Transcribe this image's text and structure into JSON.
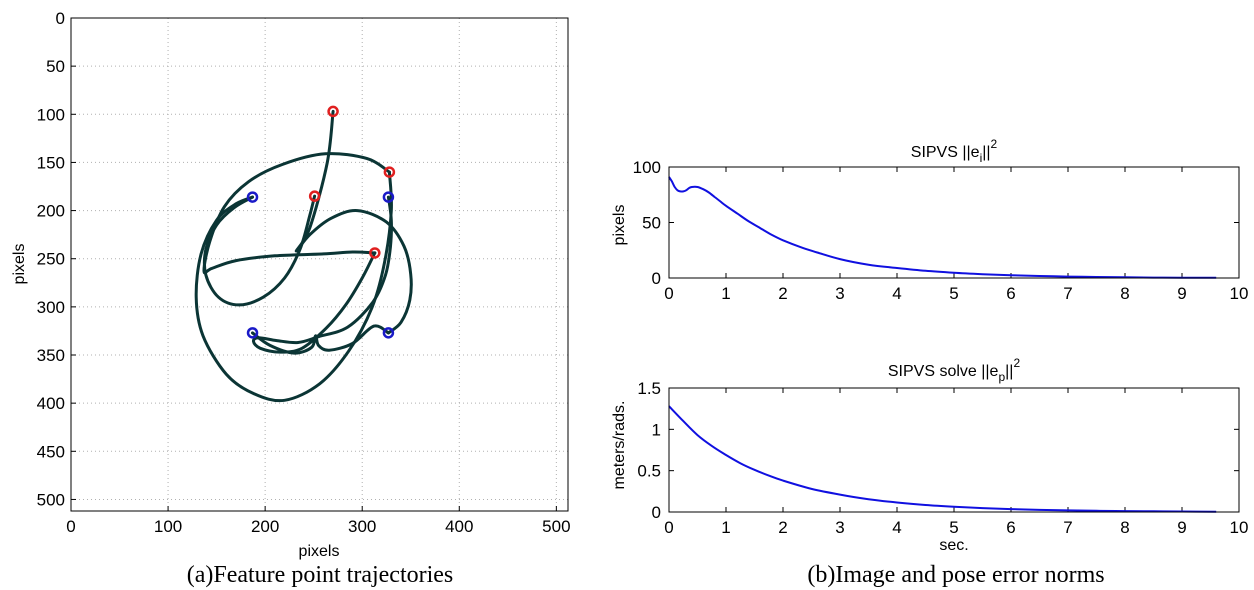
{
  "captions": {
    "a": "(a)Feature point trajectories",
    "b": "(b)Image and pose error norms"
  },
  "chart_data": [
    {
      "type": "line",
      "xlabel": "pixels",
      "ylabel": "pixels",
      "xlim": [
        0,
        512
      ],
      "ylim": [
        0,
        512
      ],
      "y_reversed": true,
      "grid": true,
      "xticks": [
        "0",
        "100",
        "200",
        "300",
        "400",
        "500"
      ],
      "yticks": [
        "0",
        "50",
        "100",
        "150",
        "200",
        "250",
        "300",
        "350",
        "400",
        "450",
        "500"
      ],
      "colors": {
        "trajectory": "#0b3535",
        "start": "#e02020",
        "end": "#1a1ac8"
      },
      "start_points": [
        [
          270,
          97
        ],
        [
          328,
          160
        ],
        [
          251,
          185
        ],
        [
          313,
          244
        ]
      ],
      "end_points": [
        [
          187,
          186
        ],
        [
          327,
          186
        ],
        [
          187,
          327
        ],
        [
          327,
          327
        ]
      ],
      "series": [
        {
          "values": [
            [
              270,
              97
            ],
            [
              264,
              150
            ],
            [
              246,
              218
            ],
            [
              232,
              242
            ],
            [
              246,
              225
            ],
            [
              268,
              208
            ],
            [
              295,
              200
            ],
            [
              325,
              212
            ],
            [
              343,
              237
            ],
            [
              350,
              266
            ],
            [
              349,
              293
            ],
            [
              340,
              316
            ],
            [
              327,
              327
            ]
          ]
        },
        {
          "values": [
            [
              328,
              160
            ],
            [
              305,
              146
            ],
            [
              262,
              141
            ],
            [
              218,
              152
            ],
            [
              183,
              170
            ],
            [
              158,
              196
            ],
            [
              143,
              232
            ],
            [
              137,
              263
            ],
            [
              145,
              260
            ],
            [
              170,
              252
            ],
            [
              210,
              247
            ],
            [
              260,
              245
            ],
            [
              290,
              243
            ],
            [
              313,
              244
            ]
          ]
        },
        {
          "values": [
            [
              251,
              185
            ],
            [
              246,
              205
            ],
            [
              236,
              240
            ],
            [
              220,
              270
            ],
            [
              198,
              290
            ],
            [
              173,
              298
            ],
            [
              152,
              290
            ],
            [
              139,
              267
            ],
            [
              139,
              240
            ],
            [
              150,
              215
            ],
            [
              168,
              197
            ],
            [
              187,
              186
            ]
          ]
        },
        {
          "values": [
            [
              313,
              244
            ],
            [
              300,
              270
            ],
            [
              283,
              298
            ],
            [
              263,
              322
            ],
            [
              238,
              343
            ],
            [
              215,
              347
            ],
            [
              195,
              343
            ],
            [
              188,
              336
            ],
            [
              193,
              332
            ],
            [
              212,
              335
            ],
            [
              234,
              337
            ],
            [
              255,
              331
            ],
            [
              285,
              321
            ],
            [
              311,
              295
            ],
            [
              324,
              267
            ],
            [
              329,
              238
            ],
            [
              330,
              210
            ],
            [
              327,
              186
            ]
          ]
        },
        {
          "values": [
            [
              328,
              160
            ],
            [
              330,
              200
            ],
            [
              323,
              254
            ],
            [
              310,
              301
            ],
            [
              286,
              346
            ],
            [
              256,
              380
            ],
            [
              220,
              397
            ],
            [
              188,
              390
            ],
            [
              160,
              370
            ],
            [
              136,
              330
            ],
            [
              129,
              290
            ],
            [
              134,
              245
            ],
            [
              150,
              210
            ],
            [
              170,
              193
            ],
            [
              187,
              186
            ]
          ]
        },
        {
          "values": [
            [
              187,
              327
            ],
            [
              205,
              340
            ],
            [
              230,
              348
            ],
            [
              248,
              342
            ],
            [
              252,
              330
            ],
            [
              255,
              340
            ],
            [
              266,
              345
            ],
            [
              290,
              338
            ],
            [
              312,
              320
            ],
            [
              327,
              327
            ]
          ]
        }
      ]
    },
    {
      "type": "line",
      "title_text": "SIPVS ||e",
      "title_sub": "i",
      "title_tail": "||",
      "title_sup": "2",
      "xlabel": "",
      "ylabel": "pixels",
      "xlim": [
        0,
        10
      ],
      "ylim": [
        0,
        100
      ],
      "grid": false,
      "xticks": [
        "0",
        "1",
        "2",
        "3",
        "4",
        "5",
        "6",
        "7",
        "8",
        "9",
        "10"
      ],
      "yticks": [
        "0",
        "50",
        "100"
      ],
      "color": "#1010e0",
      "series": [
        {
          "x": [
            0,
            0.05,
            0.1,
            0.15,
            0.2,
            0.25,
            0.3,
            0.35,
            0.4,
            0.5,
            0.6,
            0.7,
            0.8,
            0.9,
            1.0,
            1.2,
            1.4,
            1.6,
            1.8,
            2.0,
            2.3,
            2.6,
            3.0,
            3.5,
            4.0,
            4.5,
            5.0,
            5.5,
            6.0,
            6.5,
            7.0,
            7.5,
            8.0,
            8.5,
            9.0,
            9.6
          ],
          "values": [
            91,
            87,
            82,
            79,
            78,
            78,
            79,
            81,
            82,
            82,
            80,
            77,
            73,
            69,
            65,
            58,
            51,
            45,
            39,
            34,
            28,
            23,
            17,
            12,
            9,
            6.5,
            4.7,
            3.4,
            2.5,
            1.8,
            1.3,
            0.9,
            0.6,
            0.4,
            0.3,
            0.2
          ]
        }
      ]
    },
    {
      "type": "line",
      "title_text": "SIPVS solve ||e",
      "title_sub": "p",
      "title_tail": "||",
      "title_sup": "2",
      "xlabel": "sec.",
      "ylabel": "meters/rads.",
      "xlim": [
        0,
        10
      ],
      "ylim": [
        0,
        1.5
      ],
      "grid": false,
      "xticks": [
        "0",
        "1",
        "2",
        "3",
        "4",
        "5",
        "6",
        "7",
        "8",
        "9",
        "10"
      ],
      "yticks": [
        "0",
        "0.5",
        "1",
        "1.5"
      ],
      "color": "#1010e0",
      "series": [
        {
          "x": [
            0,
            0.25,
            0.5,
            0.75,
            1.0,
            1.25,
            1.5,
            1.75,
            2.0,
            2.5,
            3.0,
            3.5,
            4.0,
            4.5,
            5.0,
            5.5,
            6.0,
            6.5,
            7.0,
            7.5,
            8.0,
            8.5,
            9.0,
            9.6
          ],
          "values": [
            1.28,
            1.1,
            0.93,
            0.8,
            0.69,
            0.59,
            0.51,
            0.44,
            0.38,
            0.28,
            0.21,
            0.155,
            0.115,
            0.085,
            0.064,
            0.047,
            0.035,
            0.026,
            0.019,
            0.014,
            0.011,
            0.008,
            0.006,
            0.004
          ]
        }
      ]
    }
  ]
}
